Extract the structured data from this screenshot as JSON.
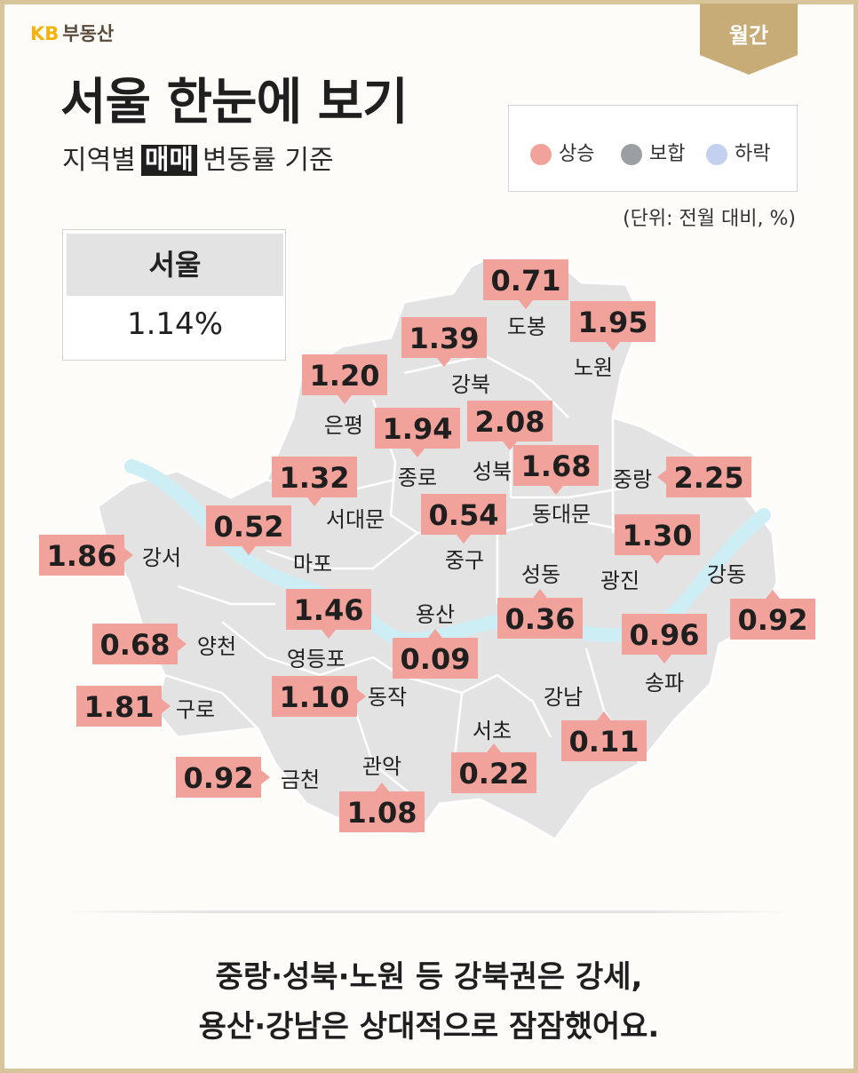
{
  "brand": {
    "kb": "KB",
    "name": "부동산"
  },
  "period_tag": "월간",
  "title": "서울 한눈에 보기",
  "subtitle": {
    "pre": "지역별",
    "highlight": "매매",
    "post": "변동률 기준"
  },
  "legend": [
    {
      "label": "상승",
      "color": "#f1a29b"
    },
    {
      "label": "보합",
      "color": "#9b9ea3"
    },
    {
      "label": "하락",
      "color": "#c3d0f0"
    }
  ],
  "unit": "(단위: 전월 대비, %)",
  "seoul": {
    "label": "서울",
    "value": "1.14%"
  },
  "districts": [
    {
      "name": "도봉",
      "value": "0.71"
    },
    {
      "name": "노원",
      "value": "1.95"
    },
    {
      "name": "강북",
      "value": "1.39"
    },
    {
      "name": "은평",
      "value": "1.20"
    },
    {
      "name": "종로",
      "value": "1.94"
    },
    {
      "name": "성북",
      "value": "2.08"
    },
    {
      "name": "동대문",
      "value": "1.68"
    },
    {
      "name": "중랑",
      "value": "2.25"
    },
    {
      "name": "서대문",
      "value": "1.32"
    },
    {
      "name": "중구",
      "value": "0.54"
    },
    {
      "name": "마포",
      "value": "0.52"
    },
    {
      "name": "강서",
      "value": "1.86"
    },
    {
      "name": "광진",
      "value": "1.30"
    },
    {
      "name": "강동",
      "value": "0.92"
    },
    {
      "name": "성동",
      "value": "0.36"
    },
    {
      "name": "용산",
      "value": "0.09"
    },
    {
      "name": "영등포",
      "value": "1.46"
    },
    {
      "name": "양천",
      "value": "0.68"
    },
    {
      "name": "송파",
      "value": "0.96"
    },
    {
      "name": "구로",
      "value": "1.81"
    },
    {
      "name": "동작",
      "value": "1.10"
    },
    {
      "name": "강남",
      "value": "0.11"
    },
    {
      "name": "서초",
      "value": "0.22"
    },
    {
      "name": "금천",
      "value": "0.92"
    },
    {
      "name": "관악",
      "value": "1.08"
    }
  ],
  "summary": [
    "중랑·성북·노원 등 강북권은 강세,",
    "용산·강남은 상대적으로 잠잠했어요."
  ]
}
